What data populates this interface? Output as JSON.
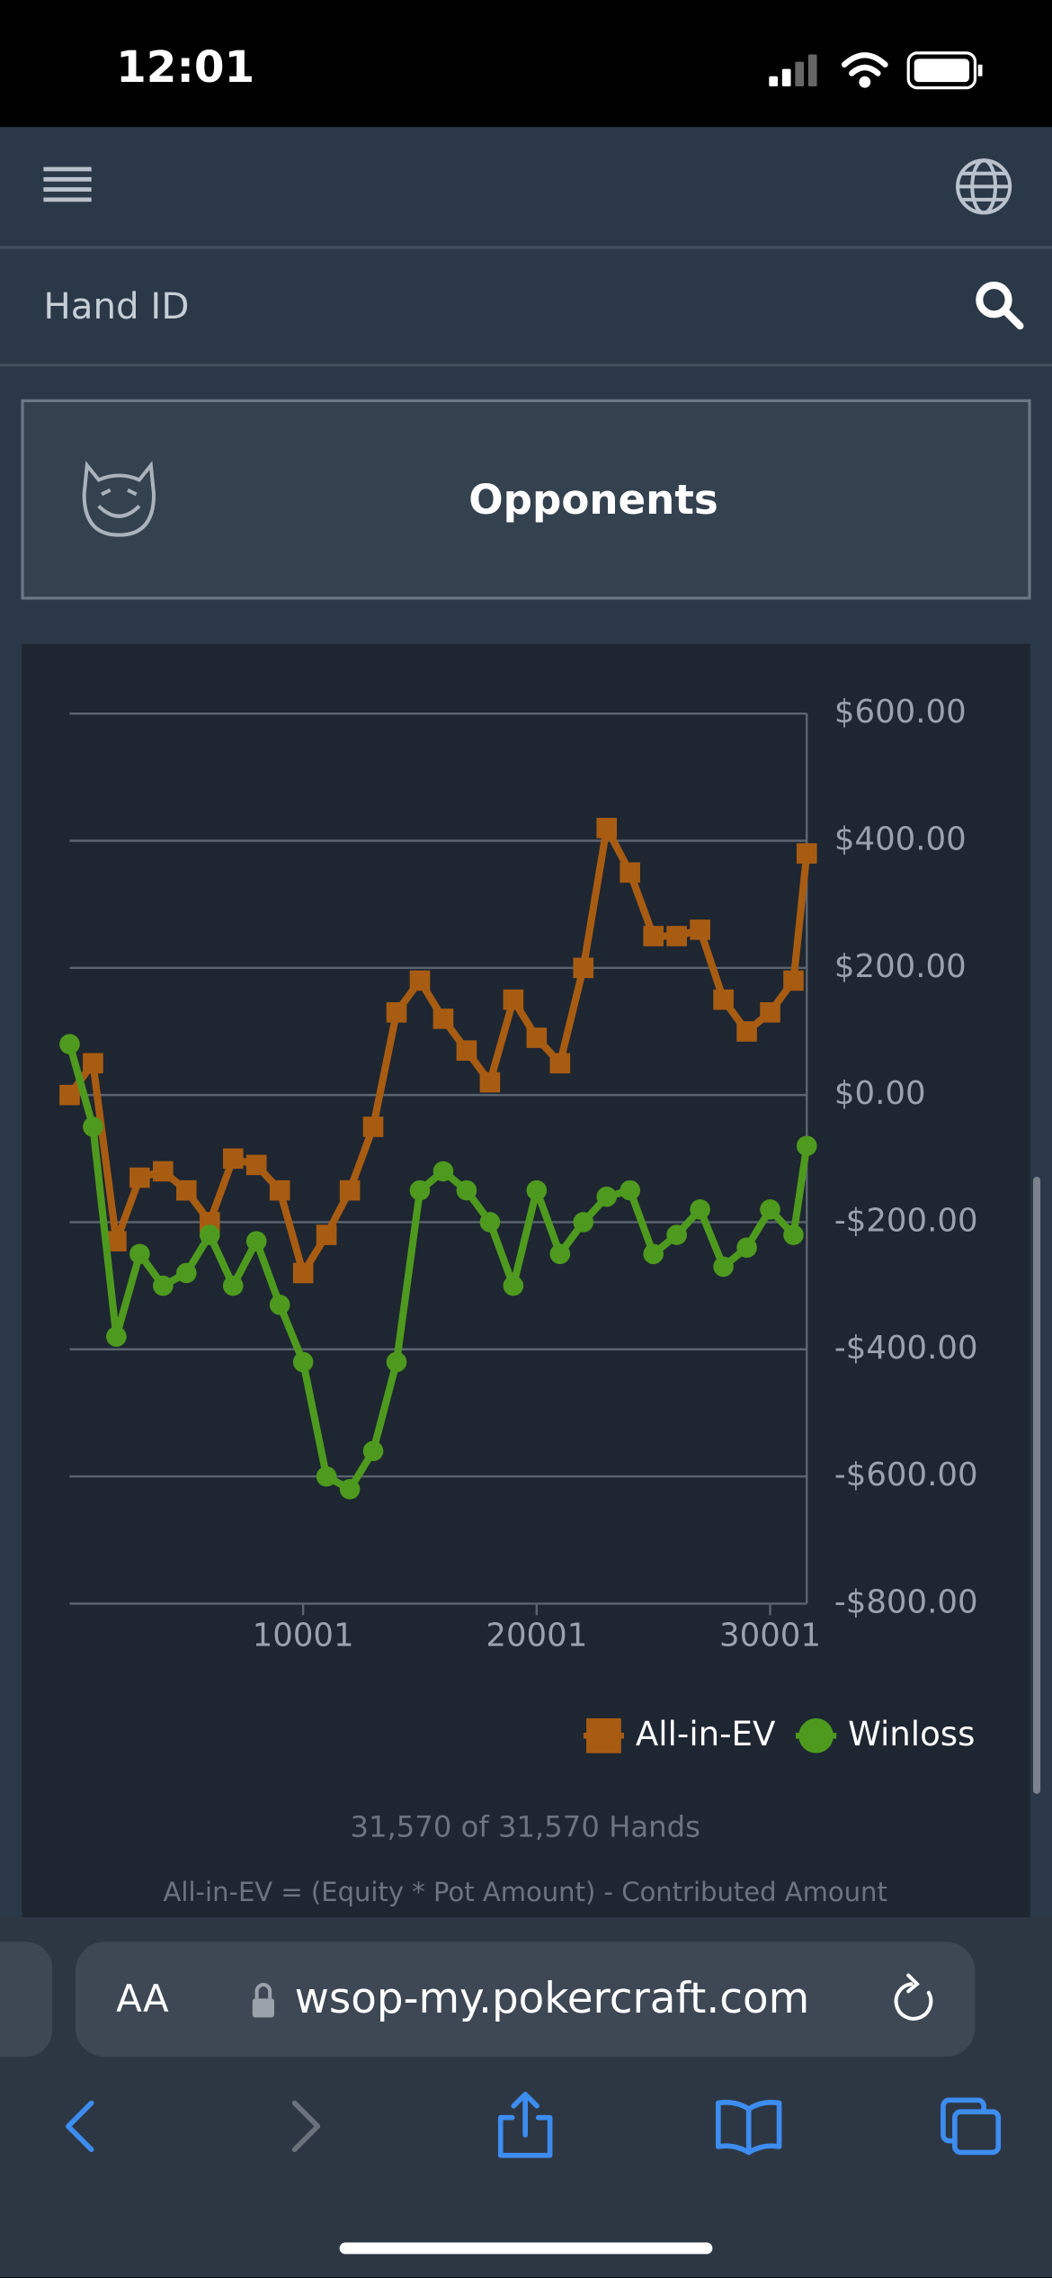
{
  "status_bar": {
    "time": "12:01"
  },
  "search": {
    "placeholder": "Hand ID"
  },
  "opponents_button": {
    "label": "Opponents"
  },
  "browser": {
    "text_size_button": "AA",
    "url": "wsop-my.pokercraft.com"
  },
  "chart_data": {
    "type": "line",
    "x": [
      1,
      1001,
      2001,
      3001,
      4001,
      5001,
      6001,
      7001,
      8001,
      9001,
      10001,
      11001,
      12001,
      13001,
      14001,
      15001,
      16001,
      17001,
      18001,
      19001,
      20001,
      21001,
      22001,
      23001,
      24001,
      25001,
      26001,
      27001,
      28001,
      29001,
      30001,
      31001,
      31570
    ],
    "series": [
      {
        "name": "All-in-EV",
        "color": "#a85c12",
        "marker": "square",
        "values": [
          0,
          50,
          -230,
          -130,
          -120,
          -150,
          -200,
          -100,
          -110,
          -150,
          -280,
          -220,
          -150,
          -50,
          130,
          180,
          120,
          70,
          20,
          150,
          90,
          50,
          200,
          420,
          350,
          250,
          250,
          260,
          150,
          100,
          130,
          180,
          380
        ]
      },
      {
        "name": "Winloss",
        "color": "#4e9a1e",
        "marker": "circle",
        "values": [
          80,
          -50,
          -380,
          -250,
          -300,
          -280,
          -220,
          -300,
          -230,
          -330,
          -420,
          -600,
          -620,
          -560,
          -420,
          -150,
          -120,
          -150,
          -200,
          -300,
          -150,
          -250,
          -200,
          -160,
          -150,
          -250,
          -220,
          -180,
          -270,
          -240,
          -180,
          -220,
          -80
        ]
      }
    ],
    "xlim": [
      1,
      31570
    ],
    "xticks": [
      10001,
      20001,
      30001
    ],
    "ylim": [
      -800,
      600
    ],
    "yticks": [
      {
        "value": -800,
        "label": "-$800.00"
      },
      {
        "value": -600,
        "label": "-$600.00"
      },
      {
        "value": -400,
        "label": "-$400.00"
      },
      {
        "value": -200,
        "label": "-$200.00"
      },
      {
        "value": 0,
        "label": "$0.00"
      },
      {
        "value": 200,
        "label": "$200.00"
      },
      {
        "value": 400,
        "label": "$400.00"
      },
      {
        "value": 600,
        "label": "$600.00"
      }
    ],
    "grid": true,
    "legend": "bottom-right",
    "annotations": [
      "31,570 of 31,570 Hands",
      "All-in-EV = (Equity * Pot Amount) - Contributed Amount"
    ]
  }
}
